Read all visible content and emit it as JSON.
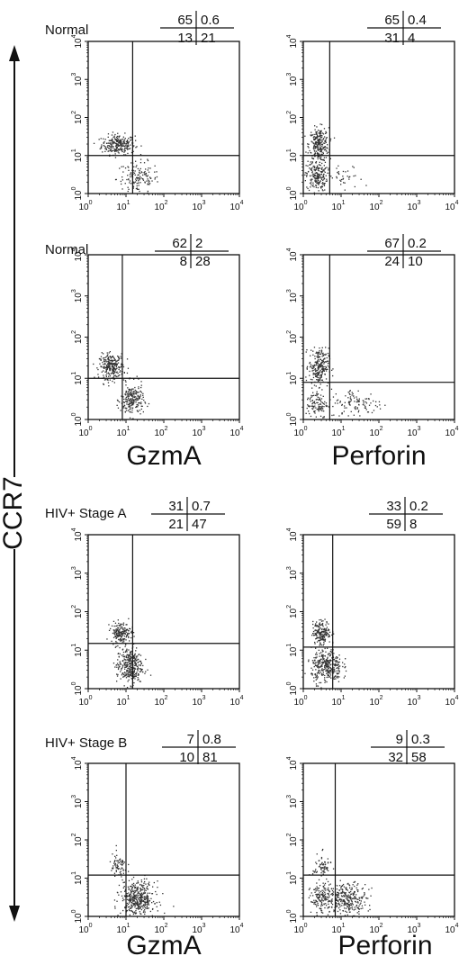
{
  "figure": {
    "y_axis_label": "CCR7",
    "tick_labels": [
      "10",
      "10",
      "10",
      "10",
      "10"
    ],
    "tick_exponents": [
      "0",
      "1",
      "2",
      "3",
      "4"
    ]
  },
  "chart_data": [
    {
      "type": "scatter",
      "row_label": "Normal",
      "marker": "GzmA",
      "xlabel": "",
      "ylabel": "CCR7",
      "quadrants": {
        "upper_left": "65",
        "upper_right": "0.6",
        "lower_left": "13",
        "lower_right": "21"
      },
      "gates": {
        "x": 15,
        "y": 10
      },
      "xlim": [
        1,
        10000
      ],
      "ylim": [
        1,
        10000
      ],
      "scale": "log",
      "clusters": [
        {
          "x": 6,
          "y": 20,
          "n": 260,
          "sx": 0.22,
          "sy": 0.13
        },
        {
          "x": 20,
          "y": 2.5,
          "n": 150,
          "sx": 0.28,
          "sy": 0.22
        }
      ]
    },
    {
      "type": "scatter",
      "row_label": "",
      "marker": "Perforin",
      "xlabel": "",
      "ylabel": "CCR7",
      "quadrants": {
        "upper_left": "65",
        "upper_right": "0.4",
        "lower_left": "31",
        "lower_right": "4"
      },
      "gates": {
        "x": 5,
        "y": 10
      },
      "xlim": [
        1,
        10000
      ],
      "ylim": [
        1,
        10000
      ],
      "scale": "log",
      "clusters": [
        {
          "x": 2.5,
          "y": 20,
          "n": 260,
          "sx": 0.13,
          "sy": 0.22
        },
        {
          "x": 2.2,
          "y": 3,
          "n": 200,
          "sx": 0.14,
          "sy": 0.2
        },
        {
          "x": 12,
          "y": 2.5,
          "n": 35,
          "sx": 0.25,
          "sy": 0.18
        }
      ]
    },
    {
      "type": "scatter",
      "row_label": "Normal",
      "marker": "GzmA",
      "xlabel": "GzmA",
      "ylabel": "CCR7",
      "quadrants": {
        "upper_left": "62",
        "upper_right": "2",
        "lower_left": "8",
        "lower_right": "28"
      },
      "gates": {
        "x": 8,
        "y": 10
      },
      "xlim": [
        1,
        10000
      ],
      "ylim": [
        1,
        10000
      ],
      "scale": "log",
      "clusters": [
        {
          "x": 4,
          "y": 20,
          "n": 260,
          "sx": 0.16,
          "sy": 0.15
        },
        {
          "x": 14,
          "y": 3,
          "n": 220,
          "sx": 0.15,
          "sy": 0.2
        }
      ]
    },
    {
      "type": "scatter",
      "row_label": "",
      "marker": "Perforin",
      "xlabel": "Perforin",
      "ylabel": "CCR7",
      "quadrants": {
        "upper_left": "67",
        "upper_right": "0.2",
        "lower_left": "24",
        "lower_right": "10"
      },
      "gates": {
        "x": 5,
        "y": 8
      },
      "xlim": [
        1,
        10000
      ],
      "ylim": [
        1,
        10000
      ],
      "scale": "log",
      "clusters": [
        {
          "x": 2.5,
          "y": 20,
          "n": 240,
          "sx": 0.13,
          "sy": 0.22
        },
        {
          "x": 2.2,
          "y": 2.5,
          "n": 110,
          "sx": 0.14,
          "sy": 0.18
        },
        {
          "x": 25,
          "y": 2.5,
          "n": 110,
          "sx": 0.35,
          "sy": 0.18
        }
      ]
    },
    {
      "type": "scatter",
      "row_label": "HIV+ Stage A",
      "marker": "GzmA",
      "xlabel": "",
      "ylabel": "CCR7",
      "quadrants": {
        "upper_left": "31",
        "upper_right": "0.7",
        "lower_left": "21",
        "lower_right": "47"
      },
      "gates": {
        "x": 15,
        "y": 15
      },
      "xlim": [
        1,
        10000
      ],
      "ylim": [
        1,
        10000
      ],
      "scale": "log",
      "clusters": [
        {
          "x": 7,
          "y": 30,
          "n": 170,
          "sx": 0.13,
          "sy": 0.13
        },
        {
          "x": 12,
          "y": 4,
          "n": 330,
          "sx": 0.17,
          "sy": 0.24
        }
      ]
    },
    {
      "type": "scatter",
      "row_label": "",
      "marker": "Perforin",
      "xlabel": "",
      "ylabel": "CCR7",
      "quadrants": {
        "upper_left": "33",
        "upper_right": "0.2",
        "lower_left": "59",
        "lower_right": "8"
      },
      "gates": {
        "x": 6,
        "y": 12
      },
      "xlim": [
        1,
        10000
      ],
      "ylim": [
        1,
        10000
      ],
      "scale": "log",
      "clusters": [
        {
          "x": 3,
          "y": 30,
          "n": 180,
          "sx": 0.12,
          "sy": 0.15
        },
        {
          "x": 4,
          "y": 4,
          "n": 330,
          "sx": 0.2,
          "sy": 0.22
        }
      ]
    },
    {
      "type": "scatter",
      "row_label": "HIV+ Stage B",
      "marker": "GzmA",
      "xlabel": "",
      "ylabel": "CCR7",
      "quadrants": {
        "upper_left": "7",
        "upper_right": "0.8",
        "lower_left": "10",
        "lower_right": "81"
      },
      "gates": {
        "x": 10,
        "y": 12
      },
      "xlim": [
        1,
        10000
      ],
      "ylim": [
        1,
        10000
      ],
      "scale": "log",
      "clusters": [
        {
          "x": 6,
          "y": 20,
          "n": 70,
          "sx": 0.12,
          "sy": 0.17
        },
        {
          "x": 20,
          "y": 3,
          "n": 420,
          "sx": 0.22,
          "sy": 0.22
        }
      ]
    },
    {
      "type": "scatter",
      "row_label": "",
      "marker": "Perforin",
      "xlabel": "Perforin",
      "ylabel": "CCR7",
      "quadrants": {
        "upper_left": "9",
        "upper_right": "0.3",
        "lower_left": "32",
        "lower_right": "58"
      },
      "gates": {
        "x": 7,
        "y": 12
      },
      "xlim": [
        1,
        10000
      ],
      "ylim": [
        1,
        10000
      ],
      "scale": "log",
      "clusters": [
        {
          "x": 3,
          "y": 20,
          "n": 70,
          "sx": 0.12,
          "sy": 0.17
        },
        {
          "x": 3,
          "y": 3,
          "n": 160,
          "sx": 0.15,
          "sy": 0.2
        },
        {
          "x": 15,
          "y": 3,
          "n": 280,
          "sx": 0.25,
          "sy": 0.2
        }
      ]
    }
  ],
  "bottom_labels": {
    "left": "GzmA",
    "right": "Perforin"
  }
}
